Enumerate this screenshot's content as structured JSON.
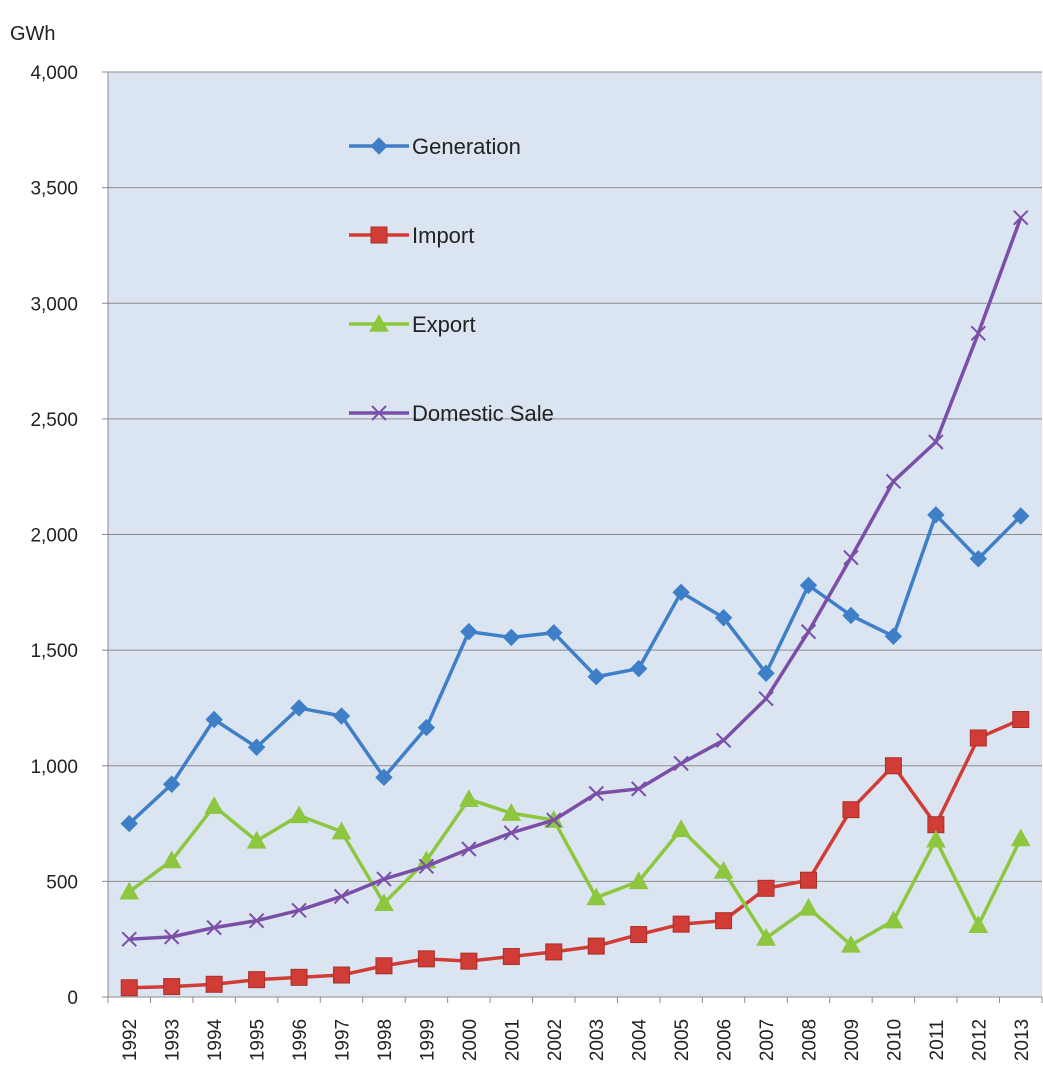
{
  "chart_data": {
    "type": "line",
    "unit_label": "GWh",
    "ylim": [
      0,
      4000
    ],
    "y_ticks": [
      "4,000",
      "3,500",
      "3,000",
      "2,500",
      "2,000",
      "1,500",
      "1,000",
      "500",
      "0"
    ],
    "y_tick_values": [
      4000,
      3500,
      3000,
      2500,
      2000,
      1500,
      1000,
      500,
      0
    ],
    "x": [
      "1992",
      "1993",
      "1994",
      "1995",
      "1996",
      "1997",
      "1998",
      "1999",
      "2000",
      "2001",
      "2002",
      "2003",
      "2004",
      "2005",
      "2006",
      "2007",
      "2008",
      "2009",
      "2010",
      "2011",
      "2012",
      "2013"
    ],
    "grid": true,
    "legend_position": "top-left inside plot",
    "series": [
      {
        "name": "Generation",
        "color": "#3f7fc8",
        "marker": "diamond",
        "values": [
          750,
          920,
          1200,
          1080,
          1250,
          1215,
          950,
          1165,
          1580,
          1555,
          1575,
          1385,
          1420,
          1750,
          1640,
          1400,
          1780,
          1650,
          1560,
          2085,
          1895,
          2080
        ]
      },
      {
        "name": "Import",
        "color": "#d23c36",
        "marker": "square",
        "values": [
          40,
          45,
          55,
          75,
          85,
          95,
          135,
          165,
          155,
          175,
          195,
          220,
          270,
          315,
          330,
          470,
          505,
          810,
          1000,
          745,
          1120,
          1200
        ]
      },
      {
        "name": "Export",
        "color": "#8dc63f",
        "marker": "triangle",
        "values": [
          455,
          590,
          825,
          675,
          785,
          715,
          405,
          590,
          855,
          795,
          765,
          430,
          500,
          725,
          545,
          255,
          385,
          225,
          330,
          680,
          310,
          685
        ]
      },
      {
        "name": "Domestic Sale",
        "color": "#7b4fa8",
        "marker": "x",
        "values": [
          250,
          260,
          300,
          330,
          375,
          435,
          510,
          565,
          640,
          710,
          765,
          880,
          900,
          1010,
          1110,
          1290,
          1580,
          1900,
          2230,
          2400,
          2870,
          3370
        ]
      }
    ]
  }
}
